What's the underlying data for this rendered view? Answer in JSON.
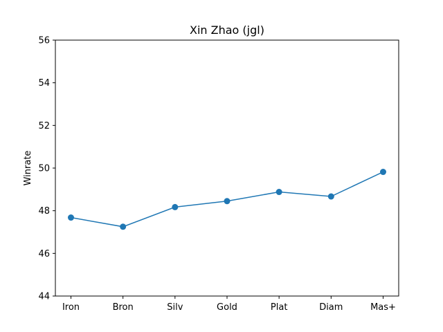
{
  "chart_data": {
    "type": "line",
    "title": "Xin Zhao (jgl)",
    "xlabel": "",
    "ylabel": "Winrate",
    "categories": [
      "Iron",
      "Bron",
      "Silv",
      "Gold",
      "Plat",
      "Diam",
      "Mas+"
    ],
    "values": [
      47.68,
      47.25,
      48.17,
      48.45,
      48.88,
      48.67,
      49.82
    ],
    "ylim": [
      44,
      56
    ],
    "yticks": [
      "44",
      "46",
      "48",
      "50",
      "52",
      "54",
      "56"
    ],
    "grid": false,
    "color": "#1f77b4"
  }
}
